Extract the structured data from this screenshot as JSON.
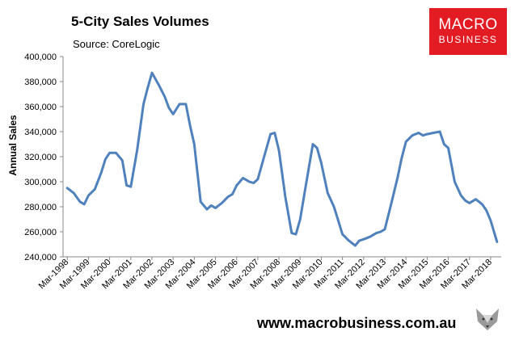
{
  "header": {
    "title": "5-City Sales Volumes",
    "source": "Source: CoreLogic"
  },
  "brand": {
    "logo_line1": "MACRO",
    "logo_line2": "BUSINESS",
    "url": "www.macrobusiness.com.au",
    "accent_color": "#e31b23",
    "line_color": "#4f81bd"
  },
  "chart_data": {
    "type": "line",
    "title": "5-City Sales Volumes",
    "xlabel": "",
    "ylabel": "Annual Sales",
    "ylim": [
      240000,
      400000
    ],
    "y_ticks": [
      "240,000",
      "260,000",
      "280,000",
      "300,000",
      "320,000",
      "340,000",
      "360,000",
      "380,000",
      "400,000"
    ],
    "x_ticks": [
      "Mar-1998",
      "Mar-1999",
      "Mar-2000",
      "Mar-2001",
      "Mar-2002",
      "Mar-2003",
      "Mar-2004",
      "Mar-2005",
      "Mar-2006",
      "Mar-2007",
      "Mar-2008",
      "Mar-2009",
      "Mar-2010",
      "Mar-2011",
      "Mar-2012",
      "Mar-2013",
      "Mar-2014",
      "Mar-2015",
      "Mar-2016",
      "Mar-2017",
      "Mar-2018"
    ],
    "grid": false,
    "legend": "none",
    "series": [
      {
        "x": [
          1998.2,
          1998.5,
          1998.8,
          1999.0,
          1999.2,
          1999.5,
          1999.8,
          2000.0,
          2000.2,
          2000.5,
          2000.8,
          2001.0,
          2001.2,
          2001.5,
          2001.8,
          2002.0,
          2002.2,
          2002.5,
          2002.8,
          2003.0,
          2003.2,
          2003.5,
          2003.8,
          2004.0,
          2004.2,
          2004.5,
          2004.8,
          2005.0,
          2005.2,
          2005.5,
          2005.8,
          2006.0,
          2006.2,
          2006.5,
          2006.8,
          2007.0,
          2007.2,
          2007.5,
          2007.8,
          2008.0,
          2008.2,
          2008.5,
          2008.8,
          2009.0,
          2009.2,
          2009.5,
          2009.8,
          2010.0,
          2010.2,
          2010.5,
          2010.8,
          2011.0,
          2011.2,
          2011.5,
          2011.8,
          2012.0,
          2012.2,
          2012.5,
          2012.8,
          2013.0,
          2013.2,
          2013.5,
          2013.8,
          2014.0,
          2014.2,
          2014.5,
          2014.8,
          2015.0,
          2015.2,
          2015.5,
          2015.8,
          2016.0,
          2016.2,
          2016.5,
          2016.8,
          2017.0,
          2017.2,
          2017.5,
          2017.8,
          2018.0,
          2018.2,
          2018.5
        ],
        "values": [
          295000,
          291000,
          284000,
          282000,
          289000,
          294000,
          307000,
          318000,
          323000,
          323000,
          317000,
          297000,
          296000,
          325000,
          362000,
          375000,
          387000,
          378000,
          368000,
          359000,
          354000,
          362000,
          362000,
          345000,
          330000,
          284000,
          278000,
          281000,
          279000,
          283000,
          288000,
          290000,
          297000,
          303000,
          300000,
          299000,
          302000,
          320000,
          338000,
          339000,
          325000,
          288000,
          259000,
          258000,
          270000,
          300000,
          330000,
          327000,
          315000,
          291000,
          280000,
          269000,
          258000,
          253000,
          249000,
          253000,
          254000,
          256000,
          259000,
          260000,
          262000,
          282000,
          303000,
          319000,
          332000,
          337000,
          339000,
          337000,
          338000,
          339000,
          340000,
          330000,
          327000,
          300000,
          289000,
          285000,
          283000,
          286000,
          282000,
          277000,
          269000,
          252000
        ]
      }
    ]
  }
}
